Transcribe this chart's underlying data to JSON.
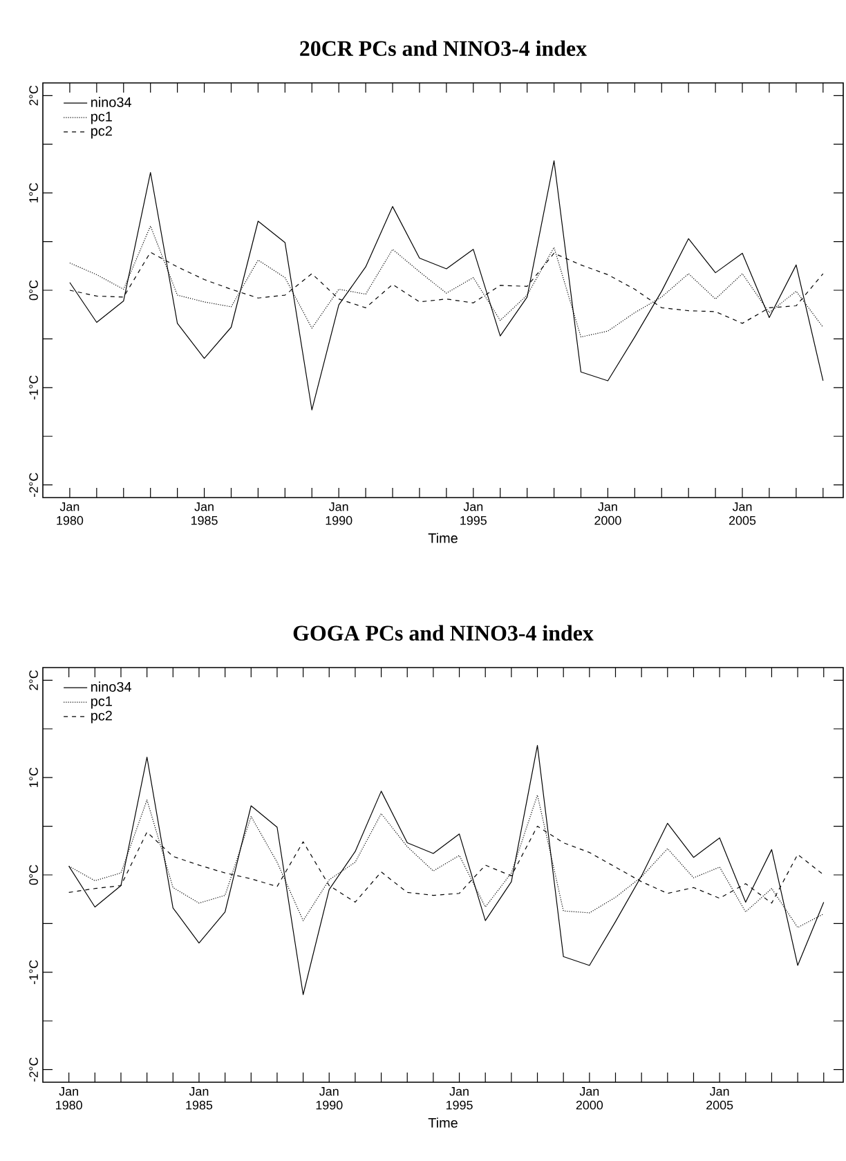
{
  "chart_data": [
    {
      "type": "line",
      "title": "20CR PCs and NINO3-4 index",
      "xlabel": "Time",
      "legend": "top left",
      "x": [
        "1980-01",
        "1981-01",
        "1982-01",
        "1983-01",
        "1984-01",
        "1985-01",
        "1986-01",
        "1987-01",
        "1988-01",
        "1989-01",
        "1990-01",
        "1991-01",
        "1992-01",
        "1993-01",
        "1994-01",
        "1995-01",
        "1996-01",
        "1997-01",
        "1998-01",
        "1999-01",
        "2000-01",
        "2001-01",
        "2002-01",
        "2003-01",
        "2004-01",
        "2005-01",
        "2006-01",
        "2007-01",
        "2008-01"
      ],
      "series": [
        {
          "name": "nino34",
          "color": "#000000",
          "line_style": "solid",
          "values": [
            0.08,
            -0.33,
            -0.11,
            1.21,
            -0.34,
            -0.7,
            -0.38,
            0.71,
            0.49,
            -1.23,
            -0.15,
            0.24,
            0.86,
            0.33,
            0.22,
            0.42,
            -0.47,
            -0.07,
            1.33,
            -0.84,
            -0.93,
            -0.48,
            -0.01,
            0.53,
            0.18,
            0.38,
            -0.28,
            0.26,
            -0.93
          ]
        },
        {
          "name": "pc1",
          "color": "#000000",
          "line_style": "dotted",
          "values": [
            0.28,
            0.16,
            0.01,
            0.66,
            -0.05,
            -0.12,
            -0.17,
            0.31,
            0.13,
            -0.39,
            0.01,
            -0.04,
            0.42,
            0.19,
            -0.03,
            0.13,
            -0.31,
            -0.05,
            0.44,
            -0.48,
            -0.42,
            -0.23,
            -0.07,
            0.17,
            -0.09,
            0.17,
            -0.23,
            -0.01,
            -0.38
          ]
        },
        {
          "name": "pc2",
          "color": "#000000",
          "line_style": "dashed",
          "values": [
            0.0,
            -0.06,
            -0.07,
            0.39,
            0.24,
            0.11,
            0.01,
            -0.08,
            -0.05,
            0.17,
            -0.09,
            -0.18,
            0.06,
            -0.12,
            -0.09,
            -0.13,
            0.05,
            0.04,
            0.38,
            0.26,
            0.16,
            0.01,
            -0.18,
            -0.21,
            -0.22,
            -0.34,
            -0.18,
            -0.16,
            0.17
          ]
        }
      ],
      "xlim": [
        "1979-01",
        "2008-10"
      ],
      "ylim": [
        -2.13,
        2.13
      ],
      "xticks": [
        {
          "value": "1980-01",
          "label": "Jan 1980"
        },
        {
          "value": "1981-01",
          "label": null
        },
        {
          "value": "1982-01",
          "label": null
        },
        {
          "value": "1983-01",
          "label": null
        },
        {
          "value": "1984-01",
          "label": null
        },
        {
          "value": "1985-01",
          "label": "Jan 1985"
        },
        {
          "value": "1986-01",
          "label": null
        },
        {
          "value": "1987-01",
          "label": null
        },
        {
          "value": "1988-01",
          "label": null
        },
        {
          "value": "1989-01",
          "label": null
        },
        {
          "value": "1990-01",
          "label": "Jan 1990"
        },
        {
          "value": "1991-01",
          "label": null
        },
        {
          "value": "1992-01",
          "label": null
        },
        {
          "value": "1993-01",
          "label": null
        },
        {
          "value": "1994-01",
          "label": null
        },
        {
          "value": "1995-01",
          "label": "Jan 1995"
        },
        {
          "value": "1996-01",
          "label": null
        },
        {
          "value": "1997-01",
          "label": null
        },
        {
          "value": "1998-01",
          "label": null
        },
        {
          "value": "1999-01",
          "label": null
        },
        {
          "value": "2000-01",
          "label": "Jan 2000"
        },
        {
          "value": "2001-01",
          "label": null
        },
        {
          "value": "2002-01",
          "label": null
        },
        {
          "value": "2003-01",
          "label": null
        },
        {
          "value": "2004-01",
          "label": null
        },
        {
          "value": "2005-01",
          "label": "Jan 2005"
        },
        {
          "value": "2006-01",
          "label": null
        },
        {
          "value": "2007-01",
          "label": null
        },
        {
          "value": "2008-01",
          "label": null
        }
      ],
      "yticks": [
        {
          "value": -2,
          "label": "-2°C"
        },
        {
          "value": -1.5,
          "label": null
        },
        {
          "value": -1,
          "label": "-1°C"
        },
        {
          "value": -0.5,
          "label": null
        },
        {
          "value": 0,
          "label": "0°C"
        },
        {
          "value": 0.5,
          "label": null
        },
        {
          "value": 1,
          "label": "1°C"
        },
        {
          "value": 1.5,
          "label": null
        },
        {
          "value": 2,
          "label": "2°C"
        }
      ]
    },
    {
      "type": "line",
      "title": "GOGA PCs and NINO3-4 index",
      "xlabel": "Time",
      "legend": "top left",
      "x": [
        "1980-01",
        "1981-01",
        "1982-01",
        "1983-01",
        "1984-01",
        "1985-01",
        "1986-01",
        "1987-01",
        "1988-01",
        "1989-01",
        "1990-01",
        "1991-01",
        "1992-01",
        "1993-01",
        "1994-01",
        "1995-01",
        "1996-01",
        "1997-01",
        "1998-01",
        "1999-01",
        "2000-01",
        "2001-01",
        "2002-01",
        "2003-01",
        "2004-01",
        "2005-01",
        "2006-01",
        "2007-01",
        "2008-01",
        "2009-01"
      ],
      "series": [
        {
          "name": "nino34",
          "color": "#000000",
          "line_style": "solid",
          "values": [
            0.09,
            -0.33,
            -0.11,
            1.21,
            -0.34,
            -0.7,
            -0.38,
            0.71,
            0.49,
            -1.23,
            -0.15,
            0.24,
            0.86,
            0.33,
            0.22,
            0.42,
            -0.47,
            -0.07,
            1.33,
            -0.84,
            -0.93,
            -0.48,
            -0.01,
            0.53,
            0.18,
            0.38,
            -0.28,
            0.26,
            -0.93,
            -0.28
          ]
        },
        {
          "name": "pc1",
          "color": "#000000",
          "line_style": "dotted",
          "values": [
            0.09,
            -0.06,
            0.02,
            0.77,
            -0.13,
            -0.29,
            -0.21,
            0.6,
            0.13,
            -0.47,
            -0.05,
            0.13,
            0.63,
            0.29,
            0.04,
            0.2,
            -0.33,
            0.02,
            0.82,
            -0.37,
            -0.39,
            -0.23,
            -0.02,
            0.27,
            -0.03,
            0.08,
            -0.38,
            -0.14,
            -0.54,
            -0.4
          ]
        },
        {
          "name": "pc2",
          "color": "#000000",
          "line_style": "dashed",
          "values": [
            -0.18,
            -0.14,
            -0.11,
            0.44,
            0.19,
            0.1,
            0.02,
            -0.04,
            -0.12,
            0.34,
            -0.11,
            -0.28,
            0.03,
            -0.18,
            -0.21,
            -0.19,
            0.1,
            -0.01,
            0.5,
            0.33,
            0.23,
            0.08,
            -0.07,
            -0.19,
            -0.13,
            -0.24,
            -0.09,
            -0.29,
            0.21,
            0.0
          ]
        }
      ],
      "xlim": [
        "1979-01",
        "2009-10"
      ],
      "ylim": [
        -2.13,
        2.13
      ],
      "xticks": [
        {
          "value": "1980-01",
          "label": "Jan 1980"
        },
        {
          "value": "1981-01",
          "label": null
        },
        {
          "value": "1982-01",
          "label": null
        },
        {
          "value": "1983-01",
          "label": null
        },
        {
          "value": "1984-01",
          "label": null
        },
        {
          "value": "1985-01",
          "label": "Jan 1985"
        },
        {
          "value": "1986-01",
          "label": null
        },
        {
          "value": "1987-01",
          "label": null
        },
        {
          "value": "1988-01",
          "label": null
        },
        {
          "value": "1989-01",
          "label": null
        },
        {
          "value": "1990-01",
          "label": "Jan 1990"
        },
        {
          "value": "1991-01",
          "label": null
        },
        {
          "value": "1992-01",
          "label": null
        },
        {
          "value": "1993-01",
          "label": null
        },
        {
          "value": "1994-01",
          "label": null
        },
        {
          "value": "1995-01",
          "label": "Jan 1995"
        },
        {
          "value": "1996-01",
          "label": null
        },
        {
          "value": "1997-01",
          "label": null
        },
        {
          "value": "1998-01",
          "label": null
        },
        {
          "value": "1999-01",
          "label": null
        },
        {
          "value": "2000-01",
          "label": "Jan 2000"
        },
        {
          "value": "2001-01",
          "label": null
        },
        {
          "value": "2002-01",
          "label": null
        },
        {
          "value": "2003-01",
          "label": null
        },
        {
          "value": "2004-01",
          "label": null
        },
        {
          "value": "2005-01",
          "label": "Jan 2005"
        },
        {
          "value": "2006-01",
          "label": null
        },
        {
          "value": "2007-01",
          "label": null
        },
        {
          "value": "2008-01",
          "label": null
        },
        {
          "value": "2009-01",
          "label": null
        }
      ],
      "yticks": [
        {
          "value": -2,
          "label": "-2°C"
        },
        {
          "value": -1.5,
          "label": null
        },
        {
          "value": -1,
          "label": "-1°C"
        },
        {
          "value": -0.5,
          "label": null
        },
        {
          "value": 0,
          "label": "0°C"
        },
        {
          "value": 0.5,
          "label": null
        },
        {
          "value": 1,
          "label": "1°C"
        },
        {
          "value": 1.5,
          "label": null
        },
        {
          "value": 2,
          "label": "2°C"
        }
      ]
    }
  ]
}
